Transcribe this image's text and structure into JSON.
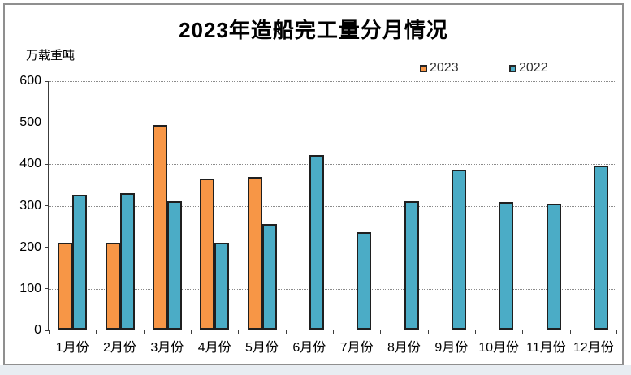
{
  "chart": {
    "title": "2023年造船完工量分月情况",
    "unit_label": "万载重吨"
  },
  "chart_data": {
    "type": "bar",
    "title": "2023年造船完工量分月情况",
    "ylabel": "万载重吨",
    "xlabel": "",
    "categories": [
      "1月份",
      "2月份",
      "3月份",
      "4月份",
      "5月份",
      "6月份",
      "7月份",
      "8月份",
      "9月份",
      "10月份",
      "11月份",
      "12月份"
    ],
    "series": [
      {
        "name": "2023",
        "color": "#F79646",
        "values": [
          210,
          210,
          493,
          363,
          367,
          null,
          null,
          null,
          null,
          null,
          null,
          null
        ]
      },
      {
        "name": "2022",
        "color": "#4BACC6",
        "values": [
          325,
          328,
          308,
          210,
          255,
          420,
          235,
          308,
          385,
          307,
          303,
          395
        ]
      }
    ],
    "ylim": [
      0,
      600
    ],
    "yticks": [
      0,
      100,
      200,
      300,
      400,
      500,
      600
    ],
    "grid": "horizontal-dotted",
    "legend_position": "top-right",
    "bar_border_color": "#1F1F1F"
  }
}
